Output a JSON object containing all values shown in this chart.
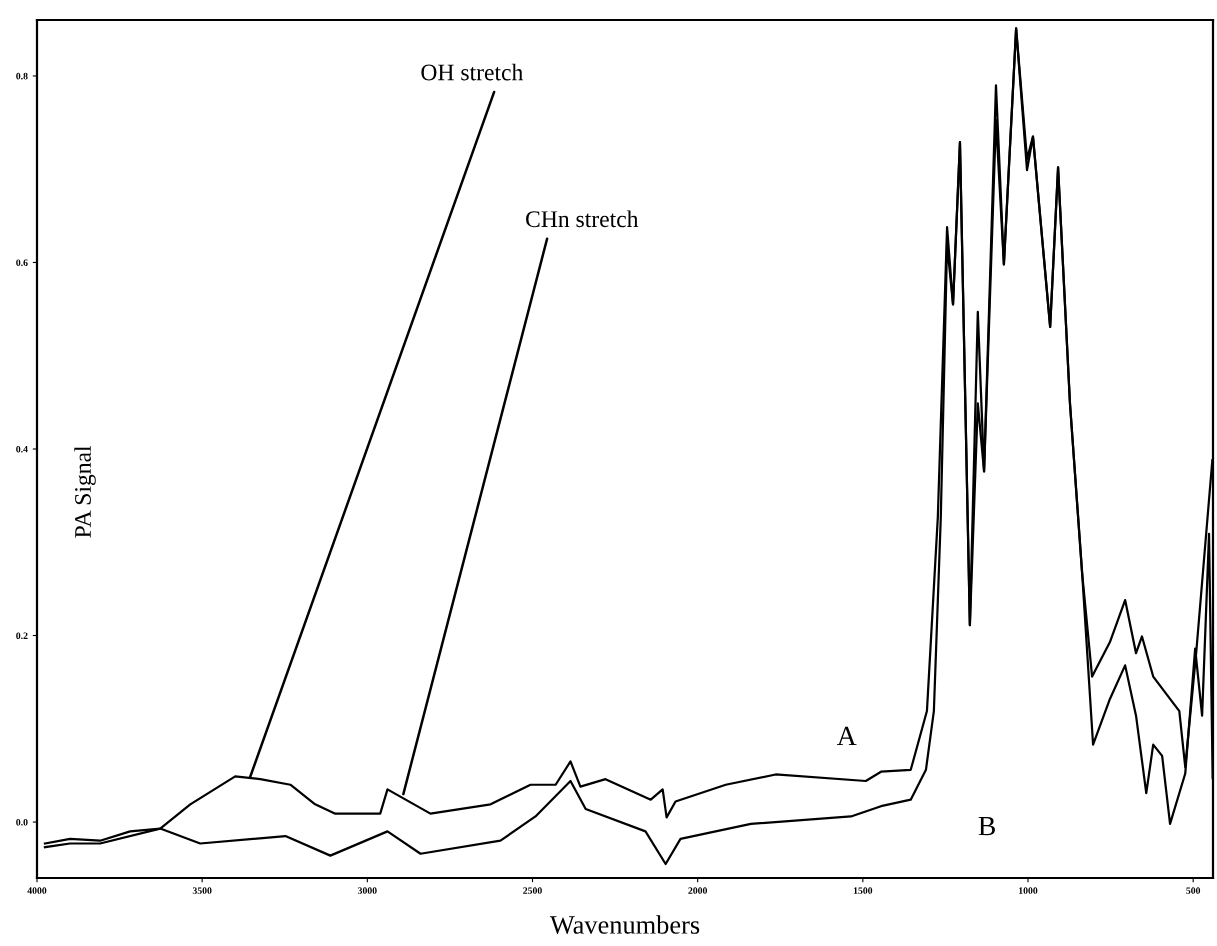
{
  "chart_data": {
    "type": "line",
    "xlabel": "Wavenumbers",
    "ylabel": "PA Signal",
    "xlim": [
      4000,
      440
    ],
    "xticks": [
      4000,
      3500,
      3000,
      2500,
      2000,
      1500,
      1000,
      500
    ],
    "ylim": [
      -0.06,
      0.86
    ],
    "yticks": [
      {
        "value": 0,
        "label": "0.0"
      },
      0.2,
      0.4,
      0.6,
      0.8
    ],
    "grid": false,
    "legend": false,
    "marker": "none",
    "line_style": "solid",
    "series": [
      {
        "name": "A",
        "color": "#000000",
        "x": [
          3976,
          3900,
          3809,
          3718,
          3627,
          3536,
          3400,
          3324,
          3233,
          3158,
          3097,
          2961,
          2939,
          2809,
          2627,
          2506,
          2430,
          2385,
          2355,
          2279,
          2142,
          2106,
          2094,
          2067,
          1915,
          1764,
          1491,
          1445,
          1355,
          1306,
          1273,
          1245,
          1227,
          1206,
          1176,
          1152,
          1133,
          1097,
          1073,
          1036,
          1003,
          985,
          933,
          909,
          873,
          836,
          806,
          752,
          706,
          673,
          655,
          621,
          542,
          524,
          491,
          442
        ],
        "values": [
          -0.023,
          -0.018,
          -0.02,
          -0.01,
          -0.007,
          0.019,
          0.049,
          0.046,
          0.04,
          0.019,
          0.009,
          0.009,
          0.035,
          0.009,
          0.019,
          0.04,
          0.04,
          0.065,
          0.038,
          0.046,
          0.024,
          0.035,
          0.005,
          0.022,
          0.04,
          0.051,
          0.044,
          0.054,
          0.056,
          0.119,
          0.327,
          0.638,
          0.555,
          0.729,
          0.211,
          0.547,
          0.376,
          0.79,
          0.598,
          0.851,
          0.699,
          0.735,
          0.531,
          0.702,
          0.449,
          0.266,
          0.156,
          0.193,
          0.238,
          0.181,
          0.199,
          0.156,
          0.119,
          0.059,
          0.181,
          0.388
        ]
      },
      {
        "name": "B",
        "color": "#000000",
        "x": [
          3976,
          3900,
          3809,
          3627,
          3506,
          3248,
          3112,
          2939,
          2839,
          2597,
          2491,
          2385,
          2339,
          2158,
          2097,
          2052,
          1839,
          1536,
          1445,
          1355,
          1309,
          1285,
          1264,
          1245,
          1227,
          1206,
          1176,
          1152,
          1133,
          1097,
          1073,
          1036,
          1003,
          985,
          933,
          909,
          873,
          836,
          803,
          752,
          706,
          673,
          642,
          621,
          594,
          570,
          524,
          494,
          473,
          452,
          441
        ],
        "values": [
          -0.027,
          -0.023,
          -0.023,
          -0.007,
          -0.023,
          -0.015,
          -0.036,
          -0.01,
          -0.034,
          -0.02,
          0.006,
          0.044,
          0.014,
          -0.01,
          -0.045,
          -0.018,
          -0.002,
          0.006,
          0.017,
          0.024,
          0.056,
          0.119,
          0.327,
          0.62,
          0.555,
          0.729,
          0.211,
          0.449,
          0.376,
          0.753,
          0.598,
          0.851,
          0.711,
          0.735,
          0.531,
          0.702,
          0.449,
          0.266,
          0.083,
          0.132,
          0.168,
          0.114,
          0.031,
          0.083,
          0.071,
          -0.002,
          0.052,
          0.186,
          0.114,
          0.309,
          0.047
        ]
      }
    ],
    "annotations": [
      {
        "text": "OH stretch",
        "x": 3355,
        "y": 0.048
      },
      {
        "text": "CHn stretch",
        "x": 2891,
        "y": 0.03
      }
    ]
  }
}
